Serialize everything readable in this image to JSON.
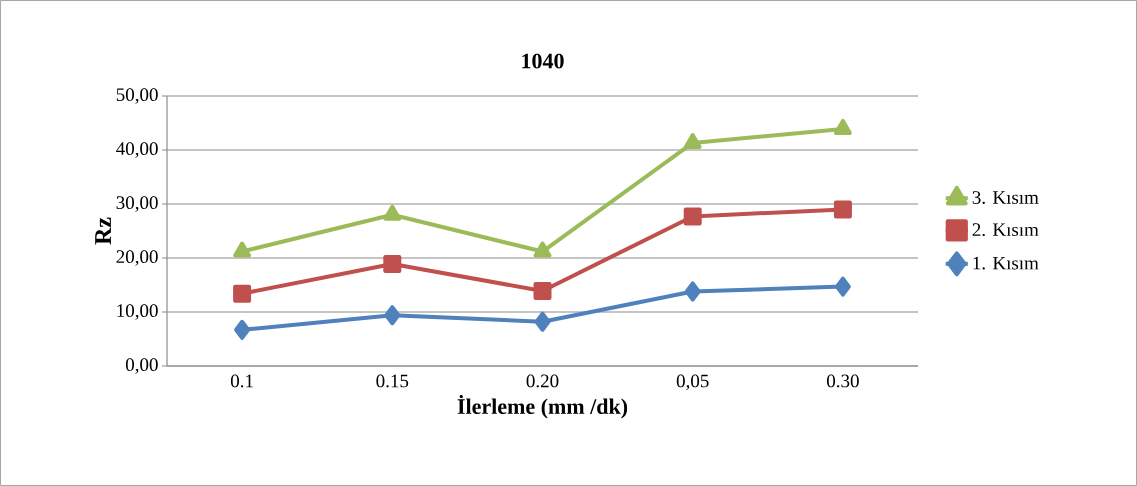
{
  "chart_data": {
    "type": "line",
    "title": "1040",
    "xlabel": "İlerleme (mm /dk)",
    "ylabel": "Rz",
    "categories": [
      "0.1",
      "0.15",
      "0.20",
      "0,05",
      "0.30"
    ],
    "series": [
      {
        "name": "3. Kısım",
        "color": "#9bbb59",
        "marker": "triangle",
        "values": [
          21.2,
          28.0,
          21.2,
          41.3,
          43.9
        ]
      },
      {
        "name": "2. Kısım",
        "color": "#c0504d",
        "marker": "square",
        "values": [
          13.4,
          18.9,
          13.9,
          27.7,
          29.0
        ]
      },
      {
        "name": "1. Kısım",
        "color": "#4f81bd",
        "marker": "diamond",
        "values": [
          6.7,
          9.4,
          8.2,
          13.8,
          14.7
        ]
      }
    ],
    "ylim": [
      0,
      50
    ],
    "yticks": [
      {
        "value": 0,
        "label": "0,00"
      },
      {
        "value": 10,
        "label": "10,00"
      },
      {
        "value": 20,
        "label": "20,00"
      },
      {
        "value": 30,
        "label": "30,00"
      },
      {
        "value": 40,
        "label": "40,00"
      },
      {
        "value": 50,
        "label": "50,00"
      }
    ],
    "grid": "y",
    "legend": "right",
    "line_style": "solid"
  }
}
